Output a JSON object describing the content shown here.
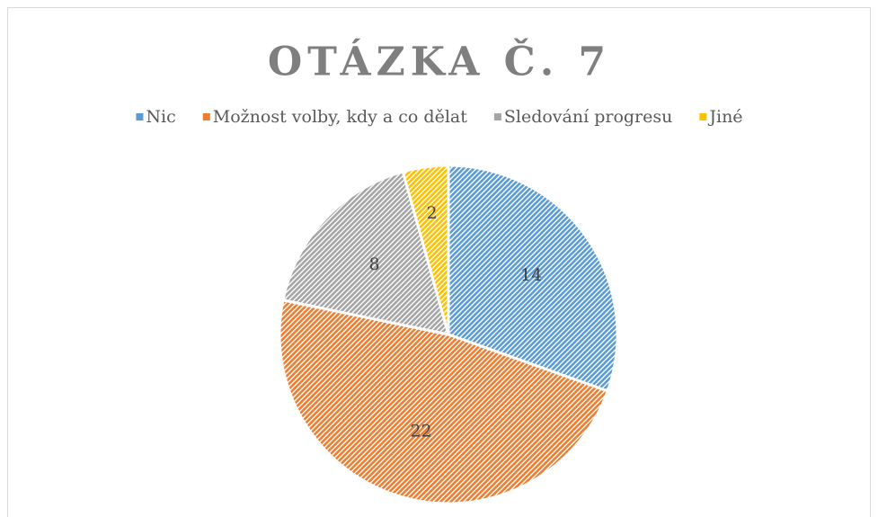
{
  "chart_data": {
    "type": "pie",
    "title": "OTÁZKA Č. 7",
    "categories": [
      "Nic",
      "Možnost volby, kdy a co dělat",
      "Sledování progresu",
      "Jiné"
    ],
    "values": [
      14,
      22,
      8,
      2
    ],
    "colors": [
      "#5b9bd5",
      "#ed7d31",
      "#a5a5a5",
      "#ffc000"
    ],
    "legend": "top",
    "pattern": "hatched"
  }
}
